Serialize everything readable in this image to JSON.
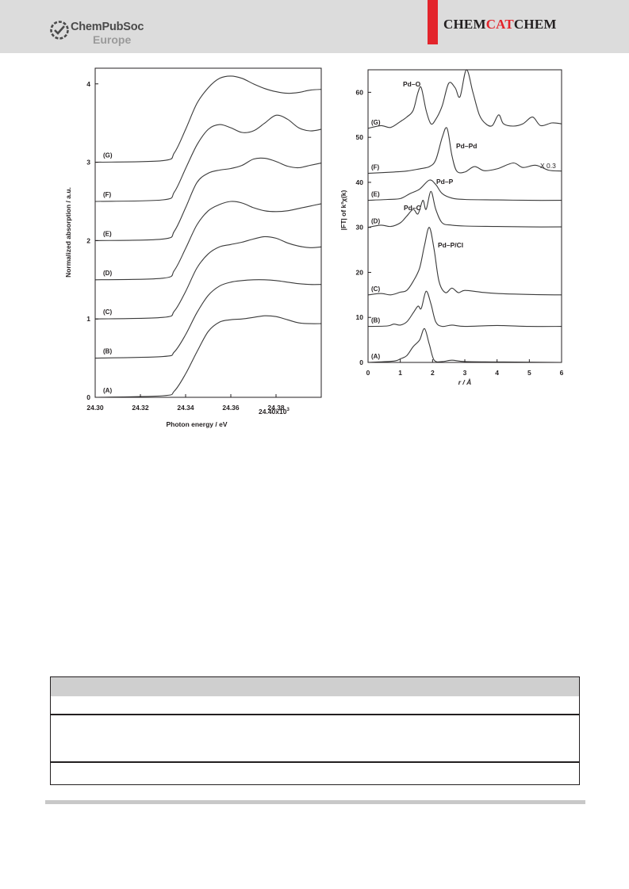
{
  "header": {
    "publisher_line1": "ChemPubSoc",
    "publisher_line2": "Europe",
    "journal_part1": "CHEM",
    "journal_part2": "CAT",
    "journal_part3": "CHEM",
    "accent_color": "#e3242b",
    "publisher_icon": "chempubsoc-logo-icon"
  },
  "chart_data": [
    {
      "type": "line",
      "xlabel": "Photon energy / eV",
      "ylabel": "Normalized absorption / a.u.",
      "x_tick_labels": [
        "24.30",
        "24.32",
        "24.34",
        "24.36",
        "24.38"
      ],
      "x_last_label": "24.40x10",
      "x_last_label_sup": "3",
      "x_ticks": [
        24.3,
        24.32,
        24.34,
        24.36,
        24.38,
        24.4
      ],
      "y_tick_labels": [
        "0",
        "1",
        "2",
        "3",
        "4"
      ],
      "xlim": [
        24.3,
        24.4
      ],
      "ylim": [
        0,
        4.2
      ],
      "grid": false,
      "series": [
        {
          "name": "(A)",
          "offset": 0.0,
          "points": [
            [
              24.3,
              0.0
            ],
            [
              24.33,
              0.02
            ],
            [
              24.335,
              0.08
            ],
            [
              24.34,
              0.3
            ],
            [
              24.345,
              0.58
            ],
            [
              24.35,
              0.84
            ],
            [
              24.355,
              0.96
            ],
            [
              24.36,
              0.99
            ],
            [
              24.365,
              1.0
            ],
            [
              24.37,
              1.02
            ],
            [
              24.375,
              1.04
            ],
            [
              24.38,
              1.03
            ],
            [
              24.385,
              0.99
            ],
            [
              24.39,
              0.95
            ],
            [
              24.395,
              0.94
            ],
            [
              24.4,
              0.94
            ]
          ]
        },
        {
          "name": "(B)",
          "offset": 0.5,
          "points": [
            [
              24.3,
              0.5
            ],
            [
              24.33,
              0.52
            ],
            [
              24.335,
              0.58
            ],
            [
              24.34,
              0.8
            ],
            [
              24.345,
              1.08
            ],
            [
              24.35,
              1.3
            ],
            [
              24.355,
              1.42
            ],
            [
              24.36,
              1.47
            ],
            [
              24.365,
              1.49
            ],
            [
              24.37,
              1.5
            ],
            [
              24.375,
              1.5
            ],
            [
              24.38,
              1.49
            ],
            [
              24.385,
              1.47
            ],
            [
              24.39,
              1.45
            ],
            [
              24.395,
              1.44
            ],
            [
              24.4,
              1.44
            ]
          ]
        },
        {
          "name": "(C)",
          "offset": 1.0,
          "points": [
            [
              24.3,
              1.0
            ],
            [
              24.33,
              1.02
            ],
            [
              24.335,
              1.1
            ],
            [
              24.34,
              1.35
            ],
            [
              24.345,
              1.65
            ],
            [
              24.35,
              1.83
            ],
            [
              24.355,
              1.92
            ],
            [
              24.36,
              1.95
            ],
            [
              24.365,
              1.98
            ],
            [
              24.37,
              2.02
            ],
            [
              24.375,
              2.05
            ],
            [
              24.38,
              2.03
            ],
            [
              24.385,
              1.97
            ],
            [
              24.39,
              1.93
            ],
            [
              24.395,
              1.91
            ],
            [
              24.4,
              1.92
            ]
          ]
        },
        {
          "name": "(D)",
          "offset": 1.5,
          "points": [
            [
              24.3,
              1.5
            ],
            [
              24.33,
              1.52
            ],
            [
              24.335,
              1.62
            ],
            [
              24.34,
              1.9
            ],
            [
              24.345,
              2.2
            ],
            [
              24.35,
              2.38
            ],
            [
              24.355,
              2.46
            ],
            [
              24.36,
              2.5
            ],
            [
              24.365,
              2.48
            ],
            [
              24.37,
              2.42
            ],
            [
              24.375,
              2.38
            ],
            [
              24.38,
              2.37
            ],
            [
              24.385,
              2.38
            ],
            [
              24.39,
              2.41
            ],
            [
              24.395,
              2.44
            ],
            [
              24.4,
              2.47
            ]
          ]
        },
        {
          "name": "(E)",
          "offset": 2.0,
          "points": [
            [
              24.3,
              2.0
            ],
            [
              24.33,
              2.02
            ],
            [
              24.335,
              2.12
            ],
            [
              24.34,
              2.42
            ],
            [
              24.345,
              2.74
            ],
            [
              24.35,
              2.86
            ],
            [
              24.355,
              2.9
            ],
            [
              24.36,
              2.92
            ],
            [
              24.365,
              2.96
            ],
            [
              24.37,
              3.04
            ],
            [
              24.375,
              3.05
            ],
            [
              24.38,
              3.01
            ],
            [
              24.385,
              2.95
            ],
            [
              24.39,
              2.93
            ],
            [
              24.395,
              2.96
            ],
            [
              24.4,
              2.99
            ]
          ]
        },
        {
          "name": "(F)",
          "offset": 2.5,
          "points": [
            [
              24.3,
              2.5
            ],
            [
              24.33,
              2.52
            ],
            [
              24.335,
              2.62
            ],
            [
              24.34,
              2.92
            ],
            [
              24.345,
              3.22
            ],
            [
              24.35,
              3.42
            ],
            [
              24.355,
              3.48
            ],
            [
              24.36,
              3.44
            ],
            [
              24.365,
              3.38
            ],
            [
              24.37,
              3.4
            ],
            [
              24.375,
              3.5
            ],
            [
              24.38,
              3.6
            ],
            [
              24.385,
              3.55
            ],
            [
              24.39,
              3.44
            ],
            [
              24.395,
              3.4
            ],
            [
              24.4,
              3.42
            ]
          ]
        },
        {
          "name": "(G)",
          "offset": 3.0,
          "points": [
            [
              24.3,
              3.0
            ],
            [
              24.33,
              3.02
            ],
            [
              24.335,
              3.12
            ],
            [
              24.34,
              3.42
            ],
            [
              24.345,
              3.75
            ],
            [
              24.35,
              3.95
            ],
            [
              24.355,
              4.07
            ],
            [
              24.36,
              4.1
            ],
            [
              24.365,
              4.07
            ],
            [
              24.37,
              4.0
            ],
            [
              24.375,
              3.94
            ],
            [
              24.38,
              3.9
            ],
            [
              24.385,
              3.88
            ],
            [
              24.39,
              3.89
            ],
            [
              24.395,
              3.92
            ],
            [
              24.4,
              3.93
            ]
          ]
        }
      ]
    },
    {
      "type": "line",
      "xlabel": "r / Å",
      "ylabel": "|FT| of k³χ(k)",
      "x_tick_labels": [
        "0",
        "1",
        "2",
        "3",
        "4",
        "5",
        "6"
      ],
      "y_tick_labels": [
        "0",
        "10",
        "20",
        "30",
        "40",
        "50",
        "60"
      ],
      "xlim": [
        0,
        6
      ],
      "ylim": [
        0,
        65
      ],
      "grid": false,
      "annotations": [
        "Pd–O",
        "Pd–Pd",
        "X 0.3",
        "Pd–P",
        "Pd–C",
        "Pd–P/Cl"
      ],
      "series": [
        {
          "name": "(A)",
          "offset": 0,
          "points": [
            [
              0,
              0
            ],
            [
              0.8,
              0.3
            ],
            [
              1.0,
              0.8
            ],
            [
              1.2,
              1.5
            ],
            [
              1.4,
              3.5
            ],
            [
              1.6,
              5
            ],
            [
              1.75,
              7.5
            ],
            [
              1.9,
              4
            ],
            [
              2.05,
              0.5
            ],
            [
              2.3,
              0.2
            ],
            [
              2.6,
              0.5
            ],
            [
              3.0,
              0.2
            ],
            [
              4.0,
              0.1
            ],
            [
              6,
              0
            ]
          ]
        },
        {
          "name": "(B)",
          "offset": 8,
          "points": [
            [
              0,
              8
            ],
            [
              0.6,
              8.1
            ],
            [
              0.8,
              8.5
            ],
            [
              1.0,
              8.3
            ],
            [
              1.2,
              9
            ],
            [
              1.4,
              11
            ],
            [
              1.55,
              12.5
            ],
            [
              1.65,
              12
            ],
            [
              1.8,
              15.8
            ],
            [
              1.95,
              13
            ],
            [
              2.1,
              9
            ],
            [
              2.3,
              8
            ],
            [
              2.6,
              8.3
            ],
            [
              3.0,
              8
            ],
            [
              4.0,
              8.2
            ],
            [
              5.0,
              8
            ],
            [
              6,
              8
            ]
          ]
        },
        {
          "name": "(C)",
          "offset": 15,
          "points": [
            [
              0,
              15
            ],
            [
              0.4,
              15.3
            ],
            [
              0.7,
              15
            ],
            [
              1.0,
              15.6
            ],
            [
              1.2,
              16
            ],
            [
              1.4,
              18
            ],
            [
              1.6,
              21
            ],
            [
              1.75,
              26
            ],
            [
              1.9,
              30
            ],
            [
              2.05,
              25
            ],
            [
              2.2,
              18
            ],
            [
              2.4,
              15.5
            ],
            [
              2.6,
              16.5
            ],
            [
              2.8,
              15.5
            ],
            [
              3.0,
              16
            ],
            [
              3.5,
              15.6
            ],
            [
              4.0,
              15.3
            ],
            [
              5.0,
              15.1
            ],
            [
              6,
              15
            ]
          ]
        },
        {
          "name": "(D)",
          "offset": 30,
          "points": [
            [
              0,
              30
            ],
            [
              0.4,
              30.5
            ],
            [
              0.7,
              30.2
            ],
            [
              1.0,
              31
            ],
            [
              1.2,
              32.5
            ],
            [
              1.4,
              34
            ],
            [
              1.55,
              33
            ],
            [
              1.7,
              36
            ],
            [
              1.8,
              34
            ],
            [
              1.95,
              38
            ],
            [
              2.1,
              34
            ],
            [
              2.3,
              31
            ],
            [
              2.6,
              30.5
            ],
            [
              3.0,
              30.3
            ],
            [
              4.0,
              30.2
            ],
            [
              5.0,
              30.1
            ],
            [
              6,
              30.1
            ]
          ]
        },
        {
          "name": "(E)",
          "offset": 36,
          "points": [
            [
              0,
              36
            ],
            [
              0.6,
              36.2
            ],
            [
              1.0,
              36.4
            ],
            [
              1.3,
              37.5
            ],
            [
              1.6,
              38.5
            ],
            [
              1.9,
              40.5
            ],
            [
              2.1,
              39.5
            ],
            [
              2.3,
              37.5
            ],
            [
              2.6,
              36.5
            ],
            [
              3.0,
              36.2
            ],
            [
              4.0,
              36.1
            ],
            [
              5.0,
              36
            ],
            [
              6,
              36
            ]
          ]
        },
        {
          "name": "(F)",
          "offset": 42,
          "points": [
            [
              0,
              42
            ],
            [
              0.8,
              42.3
            ],
            [
              1.2,
              42.5
            ],
            [
              1.6,
              43
            ],
            [
              1.9,
              43.5
            ],
            [
              2.1,
              45
            ],
            [
              2.3,
              50
            ],
            [
              2.45,
              52
            ],
            [
              2.6,
              46
            ],
            [
              2.75,
              42.5
            ],
            [
              3.0,
              42.3
            ],
            [
              3.3,
              43.5
            ],
            [
              3.6,
              42.6
            ],
            [
              4.0,
              43
            ],
            [
              4.5,
              44.3
            ],
            [
              4.8,
              43.3
            ],
            [
              5.2,
              43.8
            ],
            [
              5.6,
              42.7
            ],
            [
              6,
              42.5
            ]
          ]
        },
        {
          "name": "(G)",
          "offset": 52,
          "points": [
            [
              0,
              52
            ],
            [
              0.4,
              52.6
            ],
            [
              0.7,
              52.2
            ],
            [
              1.0,
              53.5
            ],
            [
              1.2,
              54.5
            ],
            [
              1.4,
              56
            ],
            [
              1.55,
              60
            ],
            [
              1.65,
              61
            ],
            [
              1.8,
              56
            ],
            [
              1.95,
              53
            ],
            [
              2.1,
              54
            ],
            [
              2.3,
              57
            ],
            [
              2.5,
              62
            ],
            [
              2.7,
              61
            ],
            [
              2.85,
              59
            ],
            [
              3.05,
              65
            ],
            [
              3.25,
              60
            ],
            [
              3.45,
              55
            ],
            [
              3.65,
              53
            ],
            [
              3.85,
              52.6
            ],
            [
              4.05,
              55
            ],
            [
              4.2,
              53
            ],
            [
              4.5,
              52.5
            ],
            [
              4.8,
              53
            ],
            [
              5.1,
              54.5
            ],
            [
              5.35,
              52.6
            ],
            [
              5.7,
              53.2
            ],
            [
              6,
              53
            ]
          ]
        }
      ]
    }
  ]
}
